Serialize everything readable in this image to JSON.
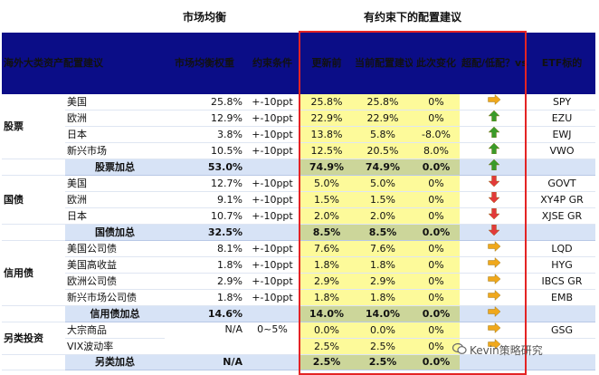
{
  "top_labels": {
    "market": "市场均衡",
    "constrained": "有约束下的配置建议"
  },
  "headers": {
    "category": "海外大类资产配置建议",
    "market_weight": "市场均衡权重",
    "constraint": "约束条件",
    "before_update": "更新前",
    "current": "当前配置建议",
    "change": "此次变化",
    "over_under": "超配/低配？vs. 市场均衡权重",
    "etf": "ETF标的"
  },
  "colors": {
    "header_bg": "#0b0d87",
    "header_text": "#ffffff",
    "header_highlight": "#ffe14a",
    "yellow_cell": "#fdfa9a",
    "total_row": "#d7e3f6",
    "negative_text": "#e11a1a",
    "arrow_up": "#3a9b2a",
    "arrow_down": "#e23a3a",
    "arrow_right": "#f0a81c",
    "box_border": "#e42424"
  },
  "groups": [
    {
      "name": "股票",
      "rows": [
        {
          "asset": "美国",
          "market": "25.8%",
          "constraint": "+-10ppt",
          "before": "25.8%",
          "current": "25.8%",
          "change": "0%",
          "change_negative": false,
          "arrow": "right",
          "etf": "SPY"
        },
        {
          "asset": "欧洲",
          "market": "12.9%",
          "constraint": "+-10ppt",
          "before": "22.9%",
          "current": "22.9%",
          "change": "0%",
          "change_negative": false,
          "arrow": "up",
          "etf": "EZU"
        },
        {
          "asset": "日本",
          "market": "3.8%",
          "constraint": "+-10ppt",
          "before": "13.8%",
          "current": "5.8%",
          "change": "-8.0%",
          "change_negative": true,
          "arrow": "up",
          "etf": "EWJ"
        },
        {
          "asset": "新兴市场",
          "market": "10.5%",
          "constraint": "+-10ppt",
          "before": "12.5%",
          "current": "20.5%",
          "change": "8.0%",
          "change_negative": false,
          "arrow": "up",
          "etf": "VWO"
        }
      ],
      "total": {
        "label": "股票加总",
        "market": "53.0%",
        "before": "74.9%",
        "current": "74.9%",
        "change": "0.0%",
        "arrow": "up"
      }
    },
    {
      "name": "国债",
      "rows": [
        {
          "asset": "美国",
          "market": "12.7%",
          "constraint": "+-10ppt",
          "before": "5.0%",
          "current": "5.0%",
          "change": "0%",
          "change_negative": false,
          "arrow": "down",
          "etf": "GOVT"
        },
        {
          "asset": "欧洲",
          "market": "9.1%",
          "constraint": "+-10ppt",
          "before": "1.5%",
          "current": "1.5%",
          "change": "0%",
          "change_negative": false,
          "arrow": "down",
          "etf": "XY4P GR"
        },
        {
          "asset": "日本",
          "market": "10.7%",
          "constraint": "+-10ppt",
          "before": "2.0%",
          "current": "2.0%",
          "change": "0%",
          "change_negative": false,
          "arrow": "down",
          "etf": "XJSE GR"
        }
      ],
      "total": {
        "label": "国债加总",
        "market": "32.5%",
        "before": "8.5%",
        "current": "8.5%",
        "change": "0.0%",
        "arrow": "down"
      }
    },
    {
      "name": "信用债",
      "rows": [
        {
          "asset": "美国公司债",
          "market": "8.1%",
          "constraint": "+-10ppt",
          "before": "7.6%",
          "current": "7.6%",
          "change": "0%",
          "change_negative": false,
          "arrow": "right",
          "etf": "LQD"
        },
        {
          "asset": "美国高收益",
          "market": "1.8%",
          "constraint": "+-10ppt",
          "before": "1.8%",
          "current": "1.8%",
          "change": "0%",
          "change_negative": false,
          "arrow": "right",
          "etf": "HYG"
        },
        {
          "asset": "欧洲公司债",
          "market": "2.9%",
          "constraint": "+-10ppt",
          "before": "2.9%",
          "current": "2.9%",
          "change": "0%",
          "change_negative": false,
          "arrow": "right",
          "etf": "IBCS GR"
        },
        {
          "asset": "新兴市场公司债",
          "market": "1.8%",
          "constraint": "+-10ppt",
          "before": "1.8%",
          "current": "1.8%",
          "change": "0%",
          "change_negative": false,
          "arrow": "right",
          "etf": "EMB"
        }
      ],
      "total": {
        "label": "信用债加总",
        "market": "14.6%",
        "before": "14.0%",
        "current": "14.0%",
        "change": "0.0%",
        "arrow": "right"
      }
    },
    {
      "name": "另类投资",
      "merged_market": "N/A",
      "merged_constraint": "0~5%",
      "rows": [
        {
          "asset": "大宗商品",
          "before": "0.0%",
          "current": "0.0%",
          "change": "0%",
          "change_negative": false,
          "arrow": "right",
          "etf": "GSG"
        },
        {
          "asset": "VIX波动率",
          "before": "2.5%",
          "current": "2.5%",
          "change": "0%",
          "change_negative": false,
          "arrow": "right",
          "etf": ""
        }
      ],
      "total": {
        "label": "另类加总",
        "market": "N/A",
        "before": "2.5%",
        "current": "2.5%",
        "change": "0.0%",
        "arrow": ""
      }
    }
  ],
  "watermark": {
    "icon": "wechat-icon",
    "text": "Kevin策略研究"
  }
}
